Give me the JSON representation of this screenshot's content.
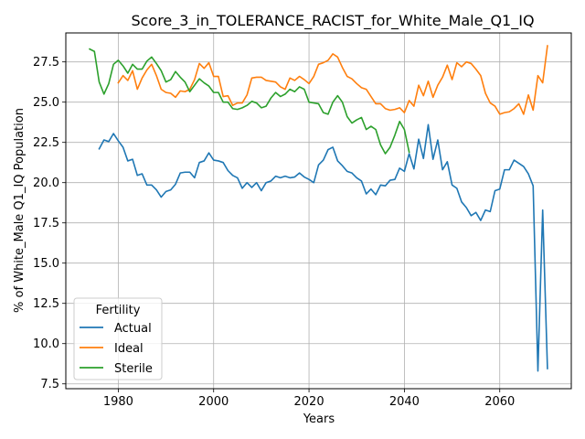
{
  "chart_data": {
    "type": "line",
    "title": "Score_3_in_TOLERANCE_RACIST_for_White_Male_Q1_IQ",
    "xlabel": "Years",
    "ylabel": "% of White_Male Q1_IQ Population",
    "xlim": [
      1969,
      2075
    ],
    "ylim": [
      7.2,
      29.3
    ],
    "xticks": [
      1980,
      2000,
      2020,
      2040,
      2060
    ],
    "yticks": [
      7.5,
      10.0,
      12.5,
      15.0,
      17.5,
      20.0,
      22.5,
      25.0,
      27.5
    ],
    "ytick_labels": [
      "7.5",
      "10.0",
      "12.5",
      "15.0",
      "17.5",
      "20.0",
      "22.5",
      "25.0",
      "27.5"
    ],
    "grid": true,
    "legend": {
      "title": "Fertility",
      "position": "lower-left"
    },
    "colors": {
      "Actual": "#1f77b4",
      "Ideal": "#ff7f0e",
      "Sterile": "#2ca02c"
    },
    "series": [
      {
        "name": "Actual",
        "x": [
          1976,
          1977,
          1978,
          1979,
          1980,
          1981,
          1982,
          1983,
          1984,
          1985,
          1986,
          1987,
          1988,
          1989,
          1990,
          1991,
          1992,
          1993,
          1994,
          1995,
          1996,
          1997,
          1998,
          1999,
          2000,
          2001,
          2002,
          2003,
          2004,
          2005,
          2006,
          2007,
          2008,
          2009,
          2010,
          2011,
          2012,
          2013,
          2014,
          2015,
          2016,
          2017,
          2018,
          2019,
          2020,
          2021,
          2022,
          2023,
          2024,
          2025,
          2026,
          2027,
          2028,
          2029,
          2030,
          2031,
          2032,
          2033,
          2034,
          2035,
          2036,
          2037,
          2038,
          2039,
          2040,
          2041,
          2042,
          2043,
          2044,
          2045,
          2046,
          2047,
          2048,
          2049,
          2050,
          2051,
          2052,
          2053,
          2054,
          2055,
          2056,
          2057,
          2058,
          2059,
          2060,
          2061,
          2062,
          2063,
          2064,
          2065,
          2066,
          2067,
          2068,
          2069,
          2070
        ],
        "values": [
          22.1,
          22.65,
          22.55,
          23.05,
          22.6,
          22.2,
          21.35,
          21.45,
          20.45,
          20.55,
          19.85,
          19.85,
          19.55,
          19.1,
          19.45,
          19.55,
          19.9,
          20.6,
          20.65,
          20.65,
          20.3,
          21.25,
          21.35,
          21.85,
          21.4,
          21.35,
          21.25,
          20.75,
          20.45,
          20.3,
          19.65,
          20.0,
          19.7,
          20.0,
          19.5,
          20.0,
          20.1,
          20.4,
          20.3,
          20.4,
          20.3,
          20.35,
          20.6,
          20.35,
          20.2,
          20.0,
          21.1,
          21.4,
          22.05,
          22.2,
          21.35,
          21.05,
          20.7,
          20.6,
          20.3,
          20.1,
          19.3,
          19.6,
          19.25,
          19.85,
          19.8,
          20.15,
          20.2,
          20.9,
          20.7,
          21.8,
          20.85,
          22.7,
          21.5,
          23.6,
          21.45,
          22.65,
          20.8,
          21.3,
          19.85,
          19.65,
          18.8,
          18.45,
          17.95,
          18.15,
          17.65,
          18.3,
          18.2,
          19.5,
          19.6,
          20.8,
          20.8,
          21.4,
          21.2,
          21.0,
          20.55,
          19.8,
          8.3,
          18.3,
          8.45
        ]
      },
      {
        "name": "Ideal",
        "x": [
          1980,
          1981,
          1982,
          1983,
          1984,
          1985,
          1986,
          1987,
          1988,
          1989,
          1990,
          1991,
          1992,
          1993,
          1994,
          1995,
          1996,
          1997,
          1998,
          1999,
          2000,
          2001,
          2002,
          2003,
          2004,
          2005,
          2006,
          2007,
          2008,
          2009,
          2010,
          2011,
          2012,
          2013,
          2014,
          2015,
          2016,
          2017,
          2018,
          2019,
          2020,
          2021,
          2022,
          2023,
          2024,
          2025,
          2026,
          2027,
          2028,
          2029,
          2030,
          2031,
          2032,
          2033,
          2034,
          2035,
          2036,
          2037,
          2038,
          2039,
          2040,
          2041,
          2042,
          2043,
          2044,
          2045,
          2046,
          2047,
          2048,
          2049,
          2050,
          2051,
          2052,
          2053,
          2054,
          2055,
          2056,
          2057,
          2058,
          2059,
          2060,
          2061,
          2062,
          2063,
          2064,
          2065,
          2066,
          2067,
          2068,
          2069,
          2070
        ],
        "values": [
          26.2,
          26.65,
          26.35,
          26.95,
          25.8,
          26.5,
          27.0,
          27.35,
          26.65,
          25.8,
          25.6,
          25.55,
          25.3,
          25.7,
          25.65,
          25.8,
          26.4,
          27.4,
          27.1,
          27.45,
          26.6,
          26.6,
          25.35,
          25.4,
          24.8,
          24.95,
          24.95,
          25.45,
          26.5,
          26.55,
          26.55,
          26.35,
          26.3,
          26.25,
          25.95,
          25.8,
          26.5,
          26.35,
          26.6,
          26.4,
          26.15,
          26.6,
          27.35,
          27.45,
          27.6,
          28.0,
          27.8,
          27.15,
          26.6,
          26.45,
          26.15,
          25.9,
          25.8,
          25.35,
          24.9,
          24.9,
          24.6,
          24.5,
          24.55,
          24.65,
          24.35,
          25.1,
          24.75,
          26.05,
          25.4,
          26.3,
          25.3,
          26.05,
          26.55,
          27.3,
          26.4,
          27.45,
          27.2,
          27.5,
          27.4,
          27.05,
          26.65,
          25.55,
          24.95,
          24.75,
          24.25,
          24.35,
          24.4,
          24.6,
          24.9,
          24.25,
          25.45,
          24.5,
          26.65,
          26.2,
          28.5
        ]
      },
      {
        "name": "Sterile",
        "x": [
          1974,
          1975,
          1976,
          1977,
          1978,
          1979,
          1980,
          1981,
          1982,
          1983,
          1984,
          1985,
          1986,
          1987,
          1988,
          1989,
          1990,
          1991,
          1992,
          1993,
          1994,
          1995,
          1996,
          1997,
          1998,
          1999,
          2000,
          2001,
          2002,
          2003,
          2004,
          2005,
          2006,
          2007,
          2008,
          2009,
          2010,
          2011,
          2012,
          2013,
          2014,
          2015,
          2016,
          2017,
          2018,
          2019,
          2020,
          2021,
          2022,
          2023,
          2024,
          2025,
          2026,
          2027,
          2028,
          2029,
          2030,
          2031,
          2032,
          2033,
          2034,
          2035,
          2036,
          2037,
          2038,
          2039,
          2040,
          2041
        ],
        "values": [
          28.3,
          28.15,
          26.25,
          25.5,
          26.15,
          27.35,
          27.6,
          27.25,
          26.8,
          27.35,
          27.05,
          27.05,
          27.55,
          27.8,
          27.4,
          26.95,
          26.25,
          26.4,
          26.9,
          26.55,
          26.25,
          25.65,
          26.05,
          26.45,
          26.2,
          26.0,
          25.6,
          25.6,
          25.0,
          25.0,
          24.6,
          24.55,
          24.65,
          24.8,
          25.05,
          24.95,
          24.65,
          24.75,
          25.25,
          25.6,
          25.35,
          25.5,
          25.8,
          25.65,
          25.95,
          25.8,
          25.0,
          24.95,
          24.9,
          24.35,
          24.25,
          25.0,
          25.4,
          25.0,
          24.1,
          23.7,
          23.9,
          24.05,
          23.3,
          23.5,
          23.3,
          22.35,
          21.8,
          22.2,
          22.95,
          23.8,
          23.3,
          21.9
        ]
      }
    ]
  }
}
